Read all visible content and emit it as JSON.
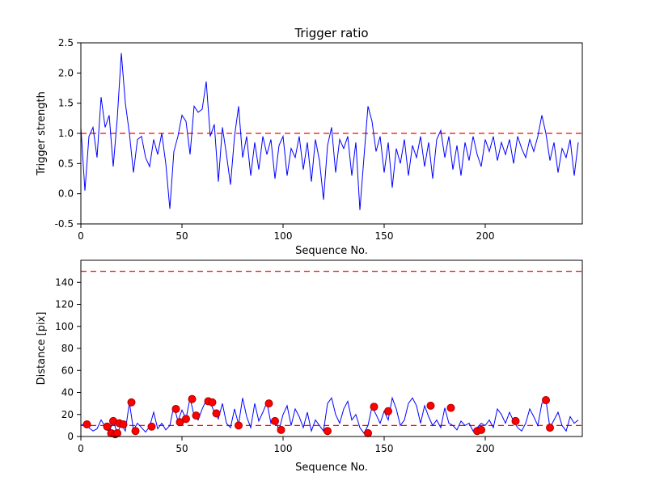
{
  "figure": {
    "background": "#ffffff",
    "line_color": "#0000ff",
    "threshold_color": "#ff0000",
    "marker_color": "#ff0000"
  },
  "chart_data": [
    {
      "type": "line",
      "title": "Trigger ratio",
      "xlabel": "Sequence No.",
      "ylabel": "Trigger strength",
      "xlim": [
        0,
        248
      ],
      "ylim": [
        -0.5,
        2.5
      ],
      "xticks": [
        0,
        50,
        100,
        150,
        200
      ],
      "xtick_labels": [
        "0",
        "50",
        "100",
        "150",
        "200"
      ],
      "yticks": [
        -0.5,
        0.0,
        0.5,
        1.0,
        1.5,
        2.0,
        2.5
      ],
      "ytick_labels": [
        "-0.5",
        "0.0",
        "0.5",
        "1.0",
        "1.5",
        "2.0",
        "2.5"
      ],
      "grid": false,
      "line_color": "#0000ff",
      "thresholds": [
        {
          "y": 1.0,
          "color": "#ff0000",
          "style": "dashed"
        }
      ],
      "x_start": 0,
      "x_step": 2,
      "y": [
        1.1,
        0.05,
        0.95,
        1.1,
        0.6,
        1.6,
        1.1,
        1.3,
        0.45,
        1.25,
        2.33,
        1.5,
        1.0,
        0.35,
        0.9,
        0.95,
        0.6,
        0.45,
        0.9,
        0.65,
        1.0,
        0.5,
        -0.25,
        0.7,
        0.95,
        1.3,
        1.2,
        0.65,
        1.45,
        1.35,
        1.4,
        1.86,
        0.95,
        1.15,
        0.2,
        1.1,
        0.65,
        0.15,
        0.95,
        1.45,
        0.6,
        0.95,
        0.3,
        0.85,
        0.4,
        0.95,
        0.65,
        0.9,
        0.25,
        0.8,
        0.95,
        0.3,
        0.75,
        0.6,
        0.95,
        0.4,
        0.85,
        0.2,
        0.9,
        0.55,
        -0.1,
        0.8,
        1.1,
        0.35,
        0.9,
        0.75,
        0.95,
        0.3,
        0.85,
        -0.27,
        0.6,
        1.45,
        1.2,
        0.7,
        0.95,
        0.35,
        0.85,
        0.1,
        0.75,
        0.5,
        0.9,
        0.3,
        0.8,
        0.6,
        0.95,
        0.45,
        0.85,
        0.25,
        0.9,
        1.05,
        0.6,
        0.95,
        0.4,
        0.8,
        0.3,
        0.85,
        0.55,
        0.95,
        0.65,
        0.45,
        0.9,
        0.7,
        0.95,
        0.55,
        0.85,
        0.65,
        0.9,
        0.5,
        0.95,
        0.75,
        0.6,
        0.9,
        0.7,
        0.95,
        1.3,
        1.0,
        0.55,
        0.85,
        0.35,
        0.75,
        0.6,
        0.9,
        0.3,
        0.85
      ]
    },
    {
      "type": "line+scatter",
      "title": "",
      "xlabel": "Sequence No.",
      "ylabel": "Distance [pix]",
      "xlim": [
        0,
        248
      ],
      "ylim": [
        0,
        160
      ],
      "xticks": [
        0,
        50,
        100,
        150,
        200
      ],
      "xtick_labels": [
        "0",
        "50",
        "100",
        "150",
        "200"
      ],
      "yticks": [
        0,
        20,
        40,
        60,
        80,
        100,
        120,
        140
      ],
      "ytick_labels": [
        "0",
        "20",
        "40",
        "60",
        "80",
        "100",
        "120",
        "140"
      ],
      "grid": false,
      "line_color": "#0000ff",
      "thresholds": [
        {
          "y": 150,
          "color": "#ff0000",
          "style": "dashed"
        },
        {
          "y": 10,
          "color": "#ff0000",
          "style": "dashed"
        }
      ],
      "x_start": 0,
      "x_step": 2,
      "y": [
        10,
        12,
        8,
        5,
        7,
        15,
        9,
        4,
        14,
        3,
        11,
        5,
        31,
        6,
        12,
        8,
        4,
        9,
        22,
        7,
        12,
        6,
        10,
        28,
        14,
        24,
        16,
        35,
        19,
        15,
        25,
        33,
        31,
        22,
        16,
        30,
        12,
        8,
        25,
        11,
        35,
        18,
        8,
        30,
        14,
        22,
        31,
        12,
        15,
        6,
        20,
        28,
        10,
        25,
        18,
        8,
        22,
        5,
        15,
        10,
        5,
        30,
        35,
        20,
        12,
        25,
        32,
        15,
        20,
        8,
        3,
        10,
        27,
        20,
        12,
        23,
        15,
        35,
        25,
        10,
        15,
        30,
        35,
        28,
        12,
        28,
        18,
        10,
        15,
        8,
        26,
        12,
        10,
        6,
        14,
        10,
        12,
        5,
        8,
        12,
        10,
        15,
        8,
        25,
        20,
        12,
        22,
        14,
        8,
        5,
        12,
        25,
        18,
        10,
        30,
        33,
        8,
        15,
        22,
        10,
        5,
        18,
        12,
        15
      ],
      "scatter": {
        "color": "#ff0000",
        "points": [
          [
            3,
            11
          ],
          [
            13,
            9
          ],
          [
            15,
            3
          ],
          [
            16,
            14
          ],
          [
            17,
            2
          ],
          [
            18,
            3
          ],
          [
            19,
            12
          ],
          [
            21,
            11
          ],
          [
            25,
            31
          ],
          [
            27,
            5
          ],
          [
            35,
            9
          ],
          [
            47,
            25
          ],
          [
            49,
            13
          ],
          [
            52,
            16
          ],
          [
            55,
            34
          ],
          [
            57,
            19
          ],
          [
            63,
            32
          ],
          [
            65,
            31
          ],
          [
            67,
            21
          ],
          [
            78,
            10
          ],
          [
            93,
            30
          ],
          [
            96,
            14
          ],
          [
            99,
            6
          ],
          [
            122,
            5
          ],
          [
            142,
            3
          ],
          [
            145,
            27
          ],
          [
            152,
            23
          ],
          [
            173,
            28
          ],
          [
            183,
            26
          ],
          [
            196,
            5
          ],
          [
            198,
            6
          ],
          [
            215,
            14
          ],
          [
            230,
            33
          ],
          [
            232,
            8
          ]
        ]
      }
    }
  ]
}
